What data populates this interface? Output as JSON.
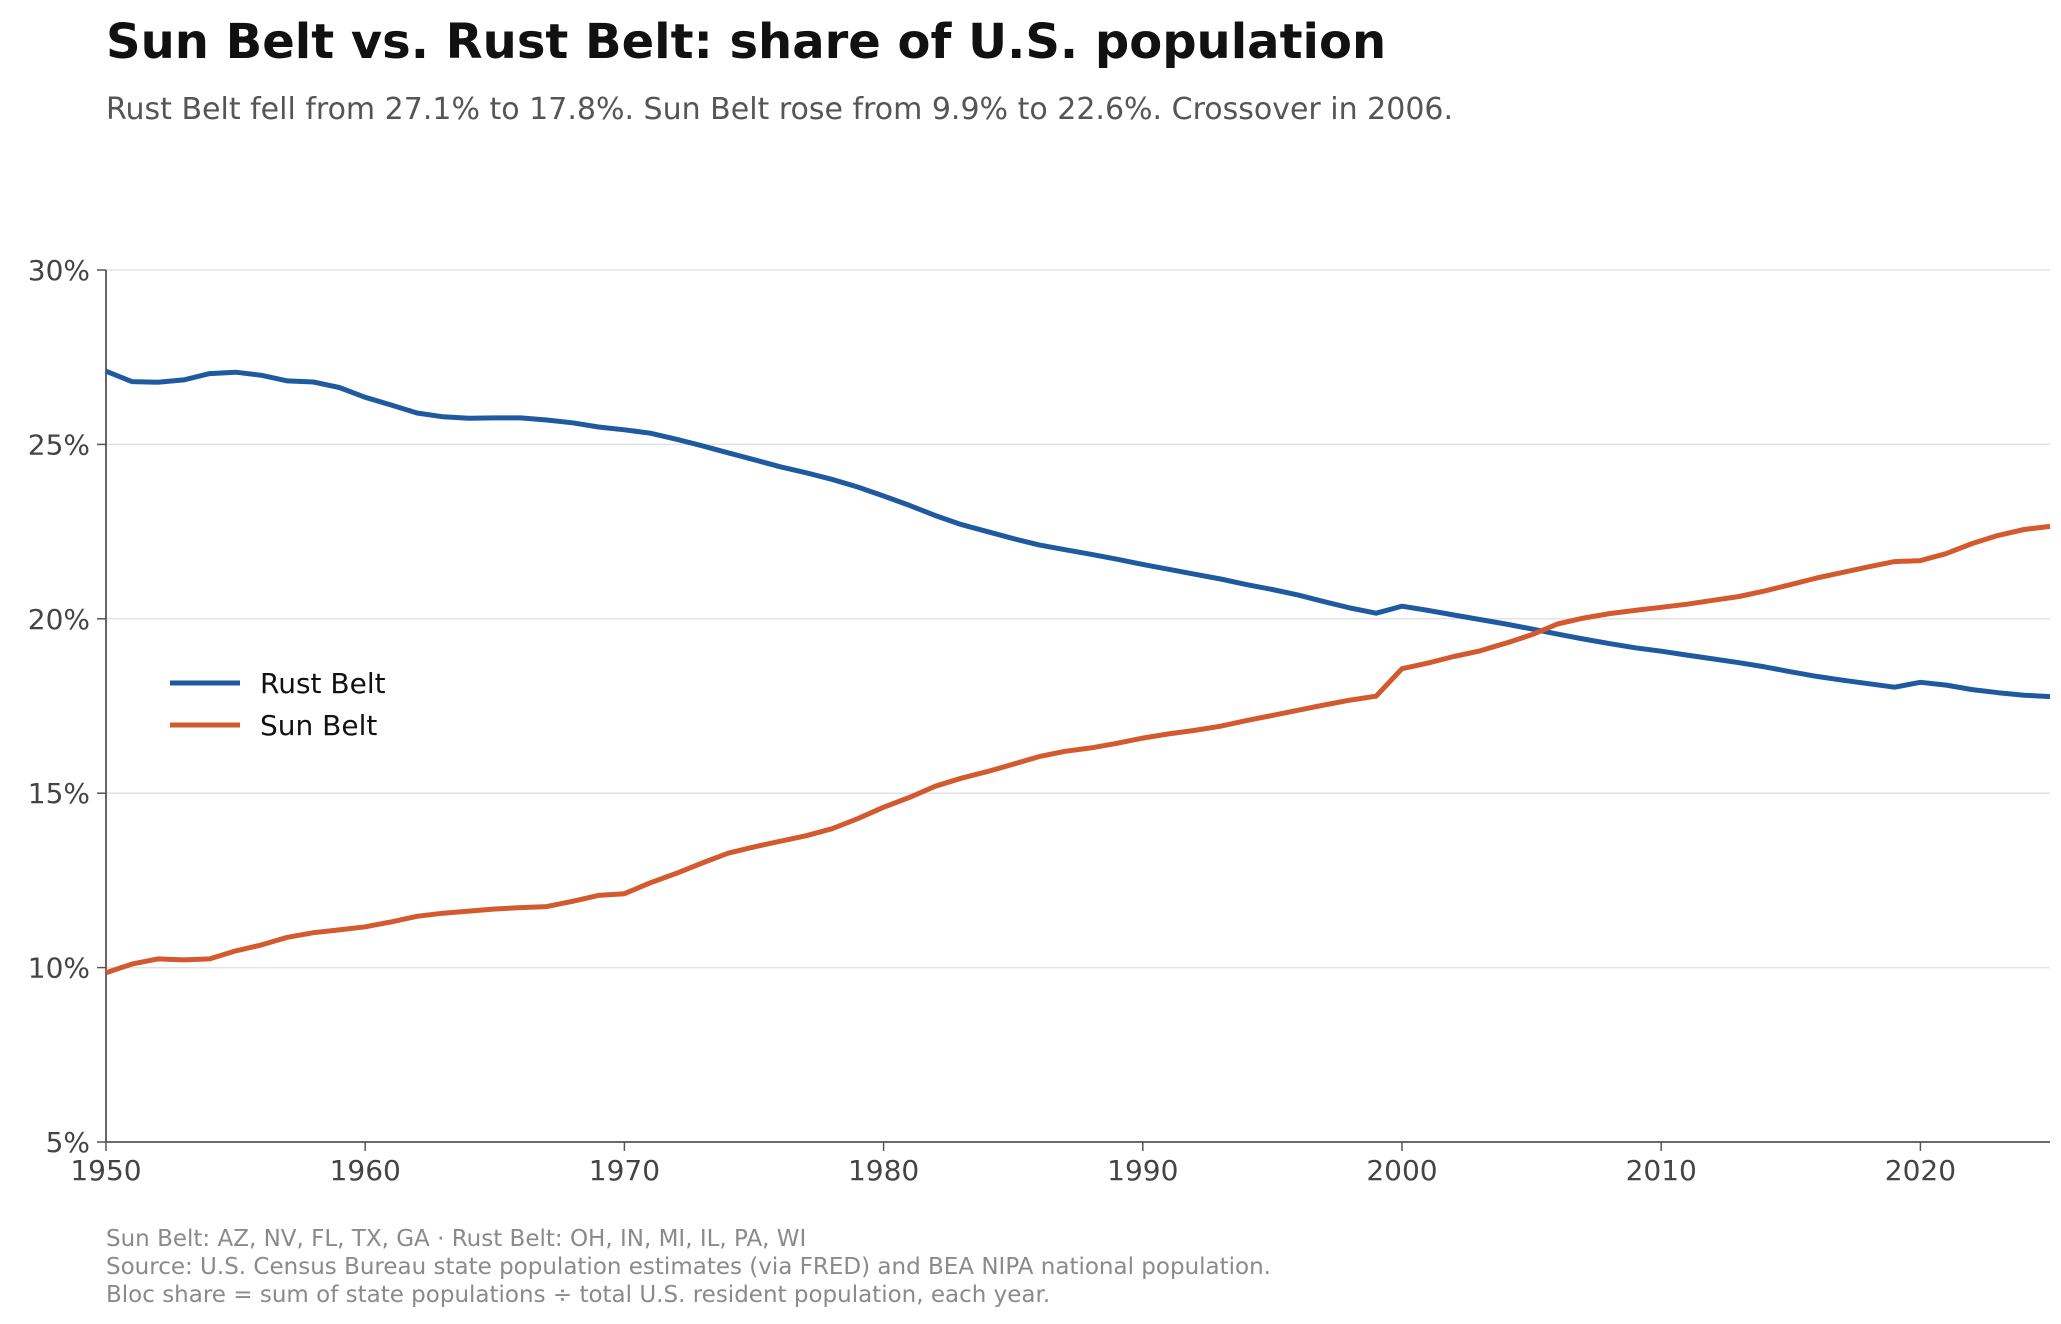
{
  "title": "Sun Belt vs. Rust Belt: share of U.S. population",
  "subtitle": "Rust Belt fell from 27.1% to 17.8%. Sun Belt rose from 9.9% to 22.6%. Crossover in 2006.",
  "footnotes": [
    "Sun Belt: AZ, NV, FL, TX, GA  ·  Rust Belt: OH, IN, MI, IL, PA, WI",
    "Source: U.S. Census Bureau state population estimates (via FRED) and BEA NIPA national population.",
    "Bloc share = sum of state populations ÷ total U.S. resident population, each year."
  ],
  "chart_data": {
    "type": "line",
    "xlim": [
      1950,
      2025
    ],
    "ylim": [
      5,
      30
    ],
    "xticks": [
      1950,
      1960,
      1970,
      1980,
      1990,
      2000,
      2010,
      2020
    ],
    "xtick_labels": [
      "1950",
      "1960",
      "1970",
      "1980",
      "1990",
      "2000",
      "2010",
      "2020"
    ],
    "yticks": [
      5,
      10,
      15,
      20,
      25,
      30
    ],
    "ytick_labels": [
      "5%",
      "10%",
      "15%",
      "20%",
      "25%",
      "30%"
    ],
    "grid": "horizontal",
    "legend_position": "center-left",
    "x": [
      1950,
      1951,
      1952,
      1953,
      1954,
      1955,
      1956,
      1957,
      1958,
      1959,
      1960,
      1961,
      1962,
      1963,
      1964,
      1965,
      1966,
      1967,
      1968,
      1969,
      1970,
      1971,
      1972,
      1973,
      1974,
      1975,
      1976,
      1977,
      1978,
      1979,
      1980,
      1981,
      1982,
      1983,
      1984,
      1985,
      1986,
      1987,
      1988,
      1989,
      1990,
      1991,
      1992,
      1993,
      1994,
      1995,
      1996,
      1997,
      1998,
      1999,
      2000,
      2001,
      2002,
      2003,
      2004,
      2005,
      2006,
      2007,
      2008,
      2009,
      2010,
      2011,
      2012,
      2013,
      2014,
      2015,
      2016,
      2017,
      2018,
      2019,
      2020,
      2021,
      2022,
      2023,
      2024,
      2025
    ],
    "series": [
      {
        "name": "Rust Belt",
        "color": "#1f5aa0",
        "values": [
          27.1,
          26.8,
          26.78,
          26.85,
          27.03,
          27.07,
          26.98,
          26.82,
          26.79,
          26.63,
          26.35,
          26.13,
          25.9,
          25.79,
          25.75,
          25.76,
          25.76,
          25.7,
          25.62,
          25.5,
          25.42,
          25.32,
          25.15,
          24.96,
          24.76,
          24.56,
          24.36,
          24.19,
          24.0,
          23.78,
          23.52,
          23.25,
          22.96,
          22.7,
          22.5,
          22.3,
          22.12,
          21.98,
          21.85,
          21.71,
          21.56,
          21.42,
          21.28,
          21.14,
          20.98,
          20.84,
          20.68,
          20.49,
          20.31,
          20.16,
          20.36,
          20.24,
          20.11,
          19.98,
          19.85,
          19.71,
          19.56,
          19.42,
          19.29,
          19.17,
          19.07,
          18.96,
          18.85,
          18.74,
          18.62,
          18.48,
          18.35,
          18.24,
          18.14,
          18.04,
          18.18,
          18.1,
          17.97,
          17.88,
          17.81,
          17.77
        ]
      },
      {
        "name": "Sun Belt",
        "color": "#d35a2f",
        "values": [
          9.85,
          10.1,
          10.25,
          10.22,
          10.25,
          10.48,
          10.65,
          10.87,
          11.0,
          11.08,
          11.17,
          11.31,
          11.47,
          11.56,
          11.62,
          11.68,
          11.72,
          11.75,
          11.9,
          12.07,
          12.12,
          12.43,
          12.7,
          13.0,
          13.28,
          13.46,
          13.62,
          13.78,
          13.98,
          14.27,
          14.6,
          14.88,
          15.2,
          15.43,
          15.62,
          15.83,
          16.05,
          16.2,
          16.3,
          16.43,
          16.58,
          16.7,
          16.8,
          16.92,
          17.08,
          17.23,
          17.38,
          17.53,
          17.67,
          17.78,
          18.57,
          18.73,
          18.92,
          19.08,
          19.3,
          19.54,
          19.85,
          20.02,
          20.15,
          20.24,
          20.33,
          20.42,
          20.53,
          20.64,
          20.8,
          20.98,
          21.17,
          21.33,
          21.49,
          21.64,
          21.67,
          21.87,
          22.16,
          22.39,
          22.56,
          22.65
        ]
      }
    ]
  }
}
